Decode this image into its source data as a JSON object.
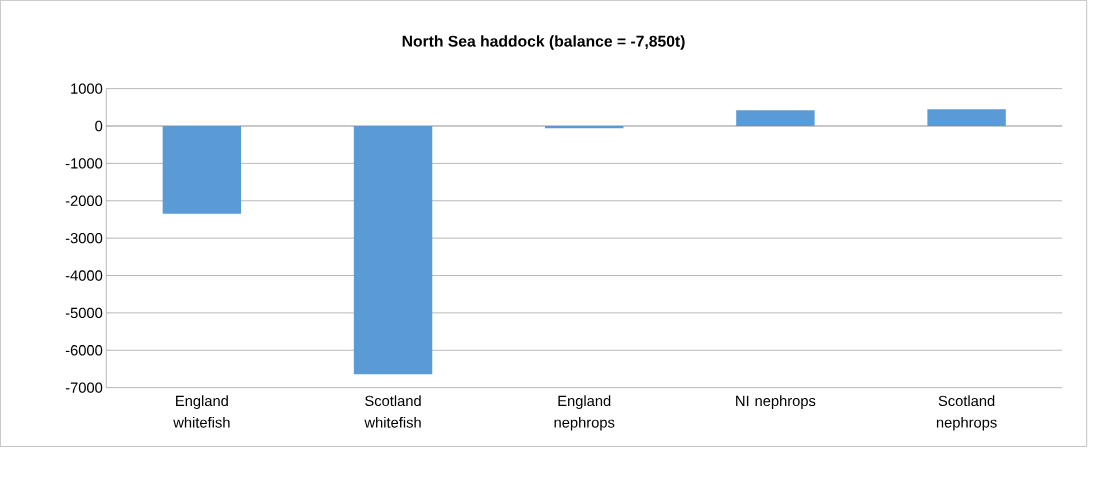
{
  "chart_data": {
    "type": "bar",
    "title": "North Sea haddock (balance = -7,850t)",
    "categories": [
      "England whitefish",
      "Scotland whitefish",
      "England nephrops",
      "NI nephrops",
      "Scotland nephrops"
    ],
    "values": [
      -2350,
      -6640,
      -60,
      420,
      450
    ],
    "color": "#5b9bd5",
    "ylim": [
      -7000,
      1000
    ],
    "yticks": [
      -7000,
      -6000,
      -5000,
      -4000,
      -3000,
      -2000,
      -1000,
      0,
      1000
    ],
    "grid": "y"
  }
}
